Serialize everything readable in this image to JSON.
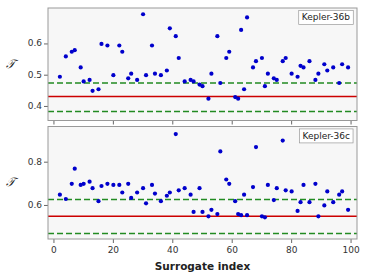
{
  "chart_data": [
    {
      "type": "scatter",
      "annotation": "Kepler-36b",
      "ylabel": "𝒯",
      "color": "#0000cc",
      "x": [
        2,
        4,
        6,
        7,
        9,
        10,
        12,
        13,
        15,
        16,
        18,
        20,
        22,
        23,
        25,
        26,
        28,
        30,
        31,
        33,
        34,
        36,
        38,
        39,
        41,
        42,
        44,
        46,
        47,
        49,
        50,
        52,
        53,
        55,
        56,
        58,
        59,
        61,
        62,
        63,
        64,
        65,
        67,
        68,
        70,
        71,
        72,
        74,
        75,
        77,
        78,
        80,
        82,
        83,
        84,
        86,
        88,
        89,
        91,
        92,
        94,
        96,
        97,
        99
      ],
      "values": [
        0.495,
        0.56,
        0.575,
        0.58,
        0.525,
        0.48,
        0.485,
        0.45,
        0.455,
        0.6,
        0.595,
        0.5,
        0.595,
        0.575,
        0.49,
        0.505,
        0.485,
        0.695,
        0.5,
        0.595,
        0.505,
        0.5,
        0.515,
        0.65,
        0.625,
        0.555,
        0.48,
        0.485,
        0.48,
        0.47,
        0.465,
        0.425,
        0.505,
        0.625,
        0.475,
        0.555,
        0.575,
        0.43,
        0.425,
        0.645,
        0.455,
        0.685,
        0.525,
        0.545,
        0.555,
        0.465,
        0.505,
        0.49,
        0.485,
        0.545,
        0.555,
        0.505,
        0.495,
        0.53,
        0.525,
        0.545,
        0.485,
        0.505,
        0.535,
        0.515,
        0.525,
        0.475,
        0.535,
        0.525
      ],
      "hlines": [
        {
          "value": 0.432,
          "color": "#cc0000",
          "line_style": "solid"
        },
        {
          "value": 0.475,
          "color": "#228B22",
          "line_style": "dashed"
        },
        {
          "value": 0.384,
          "color": "#228B22",
          "line_style": "dashed"
        }
      ],
      "xlim": [
        -2,
        102
      ],
      "xticks": [
        0,
        20,
        40,
        60,
        80,
        100
      ],
      "ylim": [
        0.355,
        0.715
      ],
      "yticks": [
        0.4,
        0.5,
        0.6
      ],
      "grid": false,
      "tick_labels": "y"
    },
    {
      "type": "scatter",
      "annotation": "Kepler-36c",
      "ylabel": "𝒯",
      "xlabel": "Surrogate index",
      "color": "#0000cc",
      "x": [
        2,
        4,
        6,
        7,
        9,
        10,
        12,
        13,
        15,
        16,
        18,
        20,
        22,
        23,
        25,
        26,
        28,
        30,
        31,
        33,
        34,
        36,
        38,
        39,
        41,
        42,
        44,
        46,
        47,
        49,
        50,
        52,
        53,
        55,
        56,
        58,
        59,
        61,
        62,
        63,
        64,
        65,
        67,
        68,
        70,
        71,
        72,
        74,
        75,
        77,
        78,
        80,
        82,
        83,
        84,
        86,
        88,
        89,
        91,
        92,
        94,
        96,
        97,
        99
      ],
      "values": [
        0.65,
        0.63,
        0.7,
        0.77,
        0.695,
        0.7,
        0.71,
        0.68,
        0.62,
        0.69,
        0.7,
        0.695,
        0.695,
        0.66,
        0.7,
        0.635,
        0.66,
        0.68,
        0.61,
        0.695,
        0.655,
        0.62,
        0.645,
        0.66,
        0.93,
        0.67,
        0.68,
        0.65,
        0.57,
        0.68,
        0.57,
        0.55,
        0.58,
        0.56,
        0.85,
        0.72,
        0.7,
        0.62,
        0.56,
        0.555,
        0.65,
        0.555,
        0.685,
        0.87,
        0.55,
        0.545,
        0.695,
        0.625,
        0.68,
        0.9,
        0.67,
        0.665,
        0.575,
        0.615,
        0.695,
        0.615,
        0.7,
        0.55,
        0.6,
        0.665,
        0.615,
        0.65,
        0.665,
        0.58
      ],
      "hlines": [
        {
          "value": 0.55,
          "color": "#cc0000",
          "line_style": "solid"
        },
        {
          "value": 0.628,
          "color": "#228B22",
          "line_style": "dashed"
        },
        {
          "value": 0.47,
          "color": "#228B22",
          "line_style": "dashed"
        }
      ],
      "xlim": [
        -2,
        102
      ],
      "xticks": [
        0,
        20,
        40,
        60,
        80,
        100
      ],
      "ylim": [
        0.445,
        0.965
      ],
      "yticks": [
        0.6,
        0.8
      ],
      "grid": false
    }
  ]
}
